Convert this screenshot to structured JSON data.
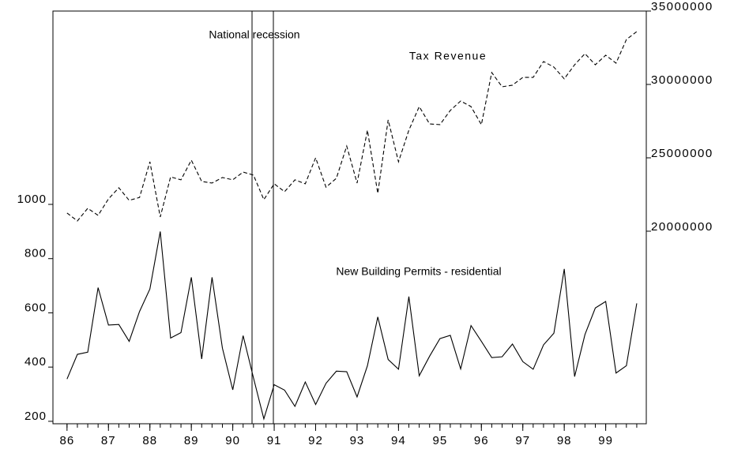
{
  "chart_data": {
    "type": "line",
    "annotations": [
      "National recession",
      "Tax Revenue",
      "New Building Permits - residential"
    ],
    "x": [
      86,
      86.25,
      86.5,
      86.75,
      87,
      87.25,
      87.5,
      87.75,
      88,
      88.25,
      88.5,
      88.75,
      89,
      89.25,
      89.5,
      89.75,
      90,
      90.25,
      90.5,
      90.75,
      91,
      91.25,
      91.5,
      91.75,
      92,
      92.25,
      92.5,
      92.75,
      93,
      93.25,
      93.5,
      93.75,
      94,
      94.25,
      94.5,
      94.75,
      95,
      95.25,
      95.5,
      95.75,
      96,
      96.25,
      96.5,
      96.75,
      97,
      97.25,
      97.5,
      97.75,
      98,
      98.25,
      98.5,
      98.75,
      99,
      99.25,
      99.5,
      99.75
    ],
    "series": [
      {
        "name": "New Building Permits - residential",
        "color": "#000000",
        "line_style": "solid",
        "axis": "y",
        "values": [
          356,
          447,
          455,
          693,
          555,
          557,
          495,
          605,
          688,
          900,
          507,
          527,
          731,
          430,
          731,
          470,
          316,
          516,
          360,
          209,
          335,
          315,
          255,
          345,
          262,
          340,
          385,
          383,
          290,
          405,
          585,
          428,
          392,
          660,
          368,
          440,
          505,
          517,
          393,
          553,
          495,
          435,
          438,
          485,
          420,
          392,
          482,
          525,
          762,
          365,
          520,
          618,
          642,
          378,
          405,
          635
        ]
      },
      {
        "name": "Tax Revenue",
        "color": "#000000",
        "line_style": "dashed",
        "axis": "y2",
        "values": [
          21240000,
          20700000,
          21560000,
          21080000,
          22200000,
          22960000,
          22100000,
          22300000,
          24730000,
          20970000,
          23700000,
          23500000,
          24840000,
          23390000,
          23280000,
          23660000,
          23500000,
          24030000,
          23820000,
          22150000,
          23230000,
          22690000,
          23500000,
          23230000,
          25000000,
          23000000,
          23600000,
          25800000,
          23280000,
          26880000,
          22580000,
          27580000,
          24730000,
          26880000,
          28490000,
          27310000,
          27260000,
          28230000,
          28870000,
          28490000,
          27260000,
          30810000,
          29840000,
          29950000,
          30480000,
          30480000,
          31560000,
          31180000,
          30380000,
          31340000,
          32100000,
          31340000,
          31990000,
          31450000,
          33060000,
          33600000
        ]
      }
    ],
    "xlim": [
      85.66,
      99.98
    ],
    "xticks": [
      86,
      87,
      88,
      89,
      90,
      91,
      92,
      93,
      94,
      95,
      96,
      97,
      98,
      99
    ],
    "ylim": [
      191,
      1713
    ],
    "yticks": [
      200,
      400,
      600,
      800,
      1000
    ],
    "y2lim": [
      6880000,
      35000000
    ],
    "y2ticks": [
      20000000,
      25000000,
      30000000,
      35000000
    ],
    "grid": false
  }
}
